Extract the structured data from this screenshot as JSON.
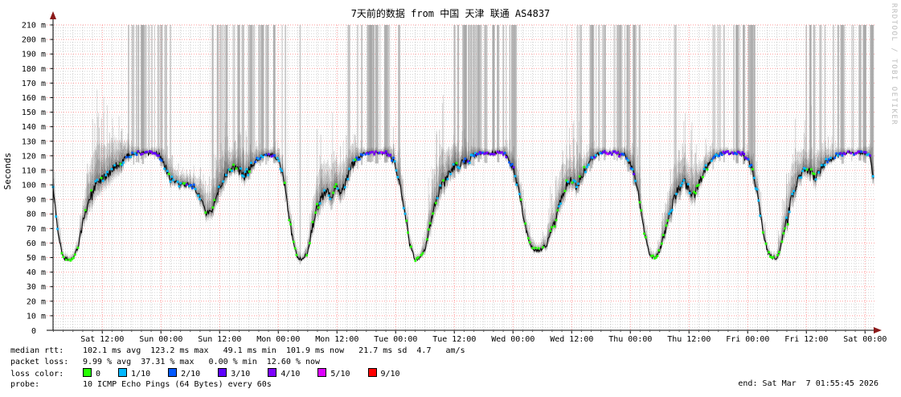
{
  "title": "7天前的数据 from 中国 天津 联通 AS4837",
  "watermark": "RRDTOOL / TOBI OETIKER",
  "end_time": "end: Sat Mar  7 01:55:45 2026",
  "y_axis": {
    "label": "Seconds"
  },
  "stats": {
    "median": {
      "label": "median rtt:",
      "value": "102.1 ms avg  123.2 ms max   49.1 ms min  101.9 ms now   21.7 ms sd  4.7   am/s"
    },
    "loss": {
      "label": "packet loss:",
      "value": "9.99 % avg  37.31 % max   0.00 % min  12.60 % now"
    },
    "probe": {
      "label": "probe:",
      "value": "10 ICMP Echo Pings (64 Bytes) every 60s"
    }
  },
  "legend": {
    "label": "loss color:",
    "items": [
      {
        "label": "0",
        "color": "#26ff00"
      },
      {
        "label": "1/10",
        "color": "#00b8ff"
      },
      {
        "label": "2/10",
        "color": "#0059ff"
      },
      {
        "label": "3/10",
        "color": "#5e00ff"
      },
      {
        "label": "4/10",
        "color": "#7e00ff"
      },
      {
        "label": "5/10",
        "color": "#dd00ff"
      },
      {
        "label": "9/10",
        "color": "#ff0000"
      }
    ]
  },
  "chart_data": {
    "type": "line",
    "title": "7天前的数据 from 中国 天津 联通 AS4837",
    "ylabel": "Seconds",
    "ylim_ms": [
      0,
      210
    ],
    "y_tick_step_ms": 10,
    "y_zero_label": "0",
    "y_tick_labels": [
      "10 m",
      "20 m",
      "30 m",
      "40 m",
      "50 m",
      "60 m",
      "70 m",
      "80 m",
      "90 m",
      "100 m",
      "110 m",
      "120 m",
      "130 m",
      "140 m",
      "150 m",
      "160 m",
      "170 m",
      "180 m",
      "190 m",
      "200 m",
      "210 m"
    ],
    "duration_hours": 168,
    "x_tick_first_offset_hours": 10.07,
    "x_tick_step_hours": 12,
    "x_tick_labels": [
      "Sat 12:00",
      "Sun 00:00",
      "Sun 12:00",
      "Mon 00:00",
      "Mon 12:00",
      "Tue 00:00",
      "Tue 12:00",
      "Wed 00:00",
      "Wed 12:00",
      "Thu 00:00",
      "Thu 12:00",
      "Fri 00:00",
      "Fri 12:00",
      "Sat 00:00"
    ],
    "step_hours": 1,
    "median_ms": [
      97,
      68,
      50,
      49,
      49,
      56,
      72,
      86,
      95,
      102,
      104,
      107,
      110,
      113,
      116,
      119,
      121,
      122,
      122,
      122,
      122,
      122,
      120,
      112,
      104,
      101,
      100,
      100,
      100,
      98,
      92,
      83,
      80,
      88,
      97,
      105,
      110,
      112,
      110,
      106,
      110,
      115,
      118,
      120,
      121,
      120,
      117,
      108,
      85,
      62,
      50,
      49,
      53,
      70,
      84,
      92,
      96,
      92,
      98,
      94,
      104,
      112,
      117,
      120,
      122,
      122,
      122,
      122,
      122,
      120,
      114,
      100,
      80,
      58,
      49,
      49,
      55,
      70,
      85,
      96,
      103,
      108,
      112,
      114,
      116,
      118,
      120,
      121,
      122,
      122,
      122,
      122,
      122,
      119,
      112,
      100,
      82,
      65,
      57,
      55,
      56,
      60,
      68,
      80,
      92,
      100,
      104,
      99,
      105,
      112,
      117,
      120,
      122,
      122,
      122,
      122,
      122,
      120,
      115,
      105,
      88,
      65,
      52,
      50,
      54,
      65,
      78,
      90,
      98,
      103,
      97,
      92,
      100,
      108,
      114,
      118,
      121,
      122,
      122,
      122,
      122,
      121,
      118,
      110,
      95,
      72,
      55,
      50,
      50,
      60,
      75,
      90,
      100,
      108,
      112,
      108,
      105,
      110,
      115,
      118,
      120,
      121,
      122,
      122,
      122,
      122,
      122,
      121,
      101
    ],
    "spread_ms": [
      10,
      8,
      4,
      3,
      3,
      6,
      12,
      18,
      24,
      25,
      22,
      20,
      20,
      18,
      14,
      10,
      6,
      4,
      3,
      3,
      3,
      4,
      6,
      10,
      10,
      8,
      6,
      6,
      6,
      8,
      12,
      14,
      12,
      16,
      18,
      16,
      12,
      10,
      12,
      14,
      12,
      8,
      6,
      4,
      4,
      5,
      7,
      10,
      10,
      8,
      5,
      3,
      6,
      14,
      20,
      22,
      18,
      20,
      16,
      18,
      16,
      12,
      8,
      5,
      3,
      3,
      3,
      3,
      4,
      6,
      9,
      12,
      10,
      7,
      4,
      3,
      8,
      15,
      20,
      22,
      20,
      16,
      13,
      11,
      9,
      7,
      5,
      4,
      3,
      3,
      3,
      3,
      4,
      6,
      9,
      11,
      10,
      8,
      5,
      4,
      5,
      8,
      12,
      16,
      20,
      18,
      14,
      16,
      14,
      10,
      7,
      5,
      3,
      3,
      3,
      3,
      4,
      5,
      8,
      11,
      11,
      8,
      5,
      3,
      6,
      12,
      16,
      20,
      18,
      14,
      16,
      18,
      14,
      10,
      8,
      5,
      4,
      3,
      3,
      3,
      3,
      4,
      5,
      8,
      10,
      8,
      5,
      3,
      4,
      10,
      16,
      20,
      18,
      15,
      12,
      14,
      16,
      12,
      9,
      7,
      5,
      4,
      3,
      3,
      3,
      3,
      4,
      6,
      10
    ],
    "loss_level": [
      1,
      0,
      0,
      0,
      0,
      0,
      0,
      1,
      1,
      1,
      1,
      1,
      1,
      1,
      1,
      2,
      2,
      3,
      4,
      3,
      4,
      3,
      2,
      1,
      1,
      1,
      1,
      2,
      2,
      1,
      1,
      0,
      0,
      1,
      1,
      1,
      1,
      1,
      1,
      1,
      1,
      2,
      2,
      2,
      3,
      2,
      2,
      1,
      0,
      0,
      0,
      0,
      0,
      0,
      1,
      1,
      1,
      0,
      1,
      1,
      1,
      1,
      2,
      2,
      3,
      4,
      3,
      4,
      3,
      2,
      2,
      1,
      0,
      0,
      0,
      0,
      0,
      0,
      1,
      1,
      1,
      1,
      1,
      1,
      2,
      2,
      2,
      3,
      4,
      3,
      4,
      4,
      3,
      2,
      2,
      1,
      0,
      0,
      0,
      0,
      0,
      0,
      0,
      1,
      1,
      1,
      1,
      1,
      1,
      1,
      2,
      2,
      3,
      4,
      3,
      4,
      3,
      2,
      2,
      1,
      0,
      0,
      0,
      0,
      0,
      0,
      1,
      1,
      1,
      1,
      1,
      0,
      1,
      1,
      1,
      2,
      2,
      3,
      4,
      3,
      4,
      3,
      2,
      1,
      1,
      0,
      0,
      0,
      0,
      0,
      1,
      1,
      1,
      1,
      1,
      1,
      1,
      1,
      2,
      2,
      2,
      3,
      4,
      3,
      4,
      3,
      2,
      2,
      1
    ],
    "loss_bar_periods": [
      [
        14.0,
        16.3,
        0.25
      ],
      [
        16.3,
        24.3,
        0.75
      ],
      [
        32.2,
        40.0,
        0.5
      ],
      [
        40.0,
        47.7,
        0.8
      ],
      [
        49.5,
        53.0,
        0.08
      ],
      [
        60.5,
        63.7,
        0.3
      ],
      [
        63.7,
        70.9,
        0.8
      ],
      [
        81.0,
        83.7,
        0.3
      ],
      [
        83.7,
        95.5,
        0.85
      ],
      [
        105.0,
        110.0,
        0.3
      ],
      [
        110.0,
        120.0,
        0.8
      ],
      [
        127.0,
        130.0,
        0.12
      ],
      [
        134.0,
        138.5,
        0.4
      ],
      [
        138.5,
        144.5,
        0.7
      ],
      [
        153.5,
        160.0,
        0.35
      ],
      [
        160.0,
        167.8,
        0.85
      ]
    ],
    "loss_palette": [
      "#26ff00",
      "#00b8ff",
      "#0059ff",
      "#5e00ff",
      "#7e00ff",
      "#dd00ff",
      "#ff0000"
    ],
    "colors": {
      "major_grid": "#ff4646",
      "minor_grid": "#828282",
      "axis": "#000000",
      "arrow": "#8b1a1a",
      "loss_bar": "#a6a6a6",
      "smoke": "#282828",
      "median_line": "#000000"
    },
    "legend_position": "bottom",
    "grid": true
  }
}
